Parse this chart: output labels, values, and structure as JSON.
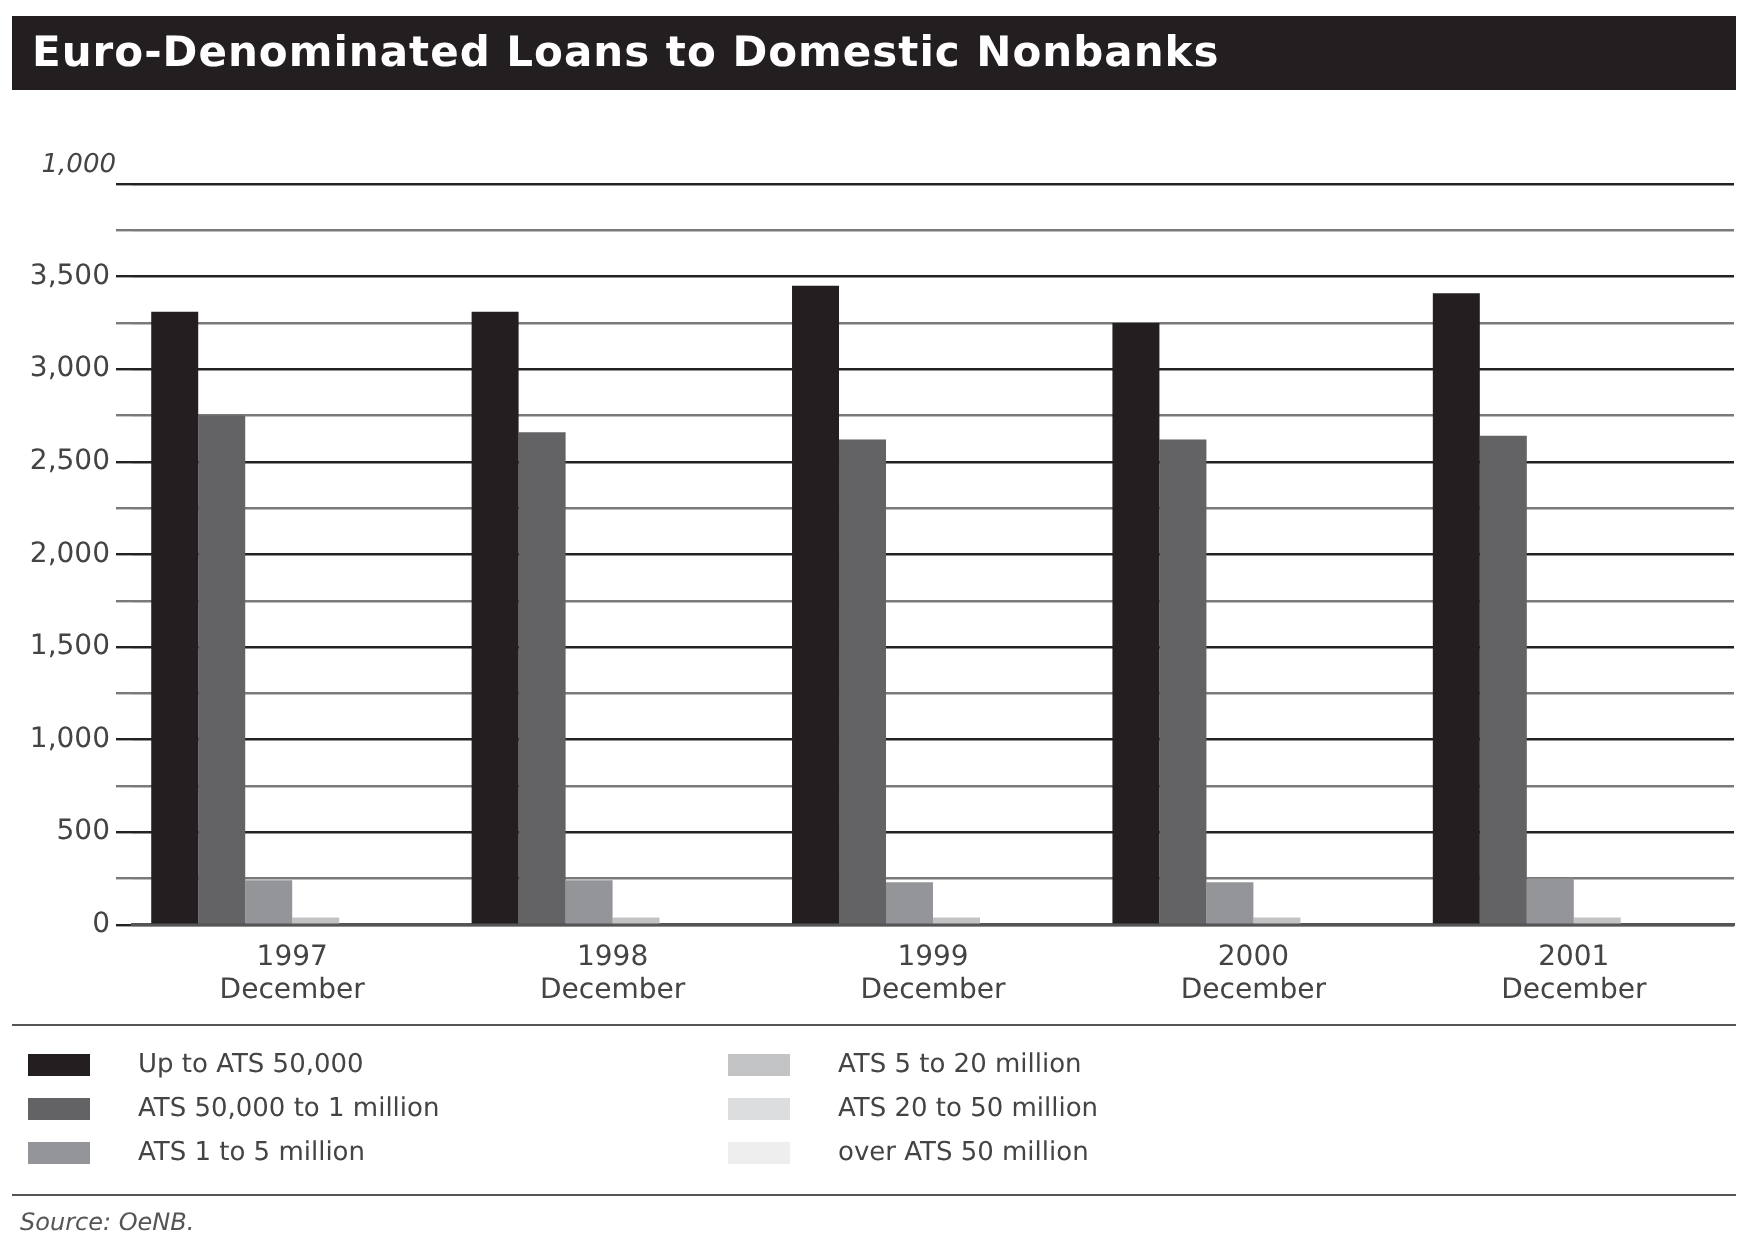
{
  "chart_data": {
    "type": "bar",
    "title": "Euro-Denominated Loans to Domestic Nonbanks",
    "ylabel": "1,000",
    "categories": [
      "1997\nDecember",
      "1998\nDecember",
      "1999\nDecember",
      "2000\nDecember",
      "2001\nDecember"
    ],
    "series": [
      {
        "name": "Up to ATS 50,000",
        "color": "#231f20",
        "values": [
          3310,
          3310,
          3450,
          3250,
          3410
        ]
      },
      {
        "name": "ATS 50,000 to 1 million",
        "color": "#636365",
        "values": [
          2750,
          2660,
          2620,
          2620,
          2640
        ]
      },
      {
        "name": "ATS 1 to 5 million",
        "color": "#939598",
        "values": [
          240,
          240,
          230,
          230,
          250
        ]
      },
      {
        "name": "ATS 5 to 20 million",
        "color": "#c2c3c5",
        "values": [
          40,
          40,
          40,
          40,
          40
        ]
      },
      {
        "name": "ATS 20 to 50 million",
        "color": "#dcdddf",
        "values": [
          0,
          0,
          0,
          0,
          0
        ]
      },
      {
        "name": "over ATS 50 million",
        "color": "#eeeeef",
        "values": [
          0,
          0,
          0,
          0,
          0
        ]
      }
    ],
    "ylim": [
      0,
      4000
    ],
    "yticks": [
      0,
      {
        "value": 250,
        "label": null
      },
      500,
      {
        "value": 750,
        "label": null
      },
      {
        "value": 1000,
        "label": "1,000"
      },
      {
        "value": 1250,
        "label": null
      },
      {
        "value": 1500,
        "label": "1,500"
      },
      {
        "value": 1750,
        "label": null
      },
      {
        "value": 2000,
        "label": "2,000"
      },
      {
        "value": 2250,
        "label": null
      },
      {
        "value": 2500,
        "label": "2,500"
      },
      {
        "value": 2750,
        "label": null
      },
      {
        "value": 3000,
        "label": "3,000"
      },
      {
        "value": 3250,
        "label": null
      },
      {
        "value": 3500,
        "label": "3,500"
      },
      {
        "value": 3750,
        "label": null
      },
      {
        "value": 4000,
        "label": null
      }
    ],
    "grid": "y",
    "legend": "bottom",
    "annotations": [
      "Source: OeNB."
    ]
  }
}
